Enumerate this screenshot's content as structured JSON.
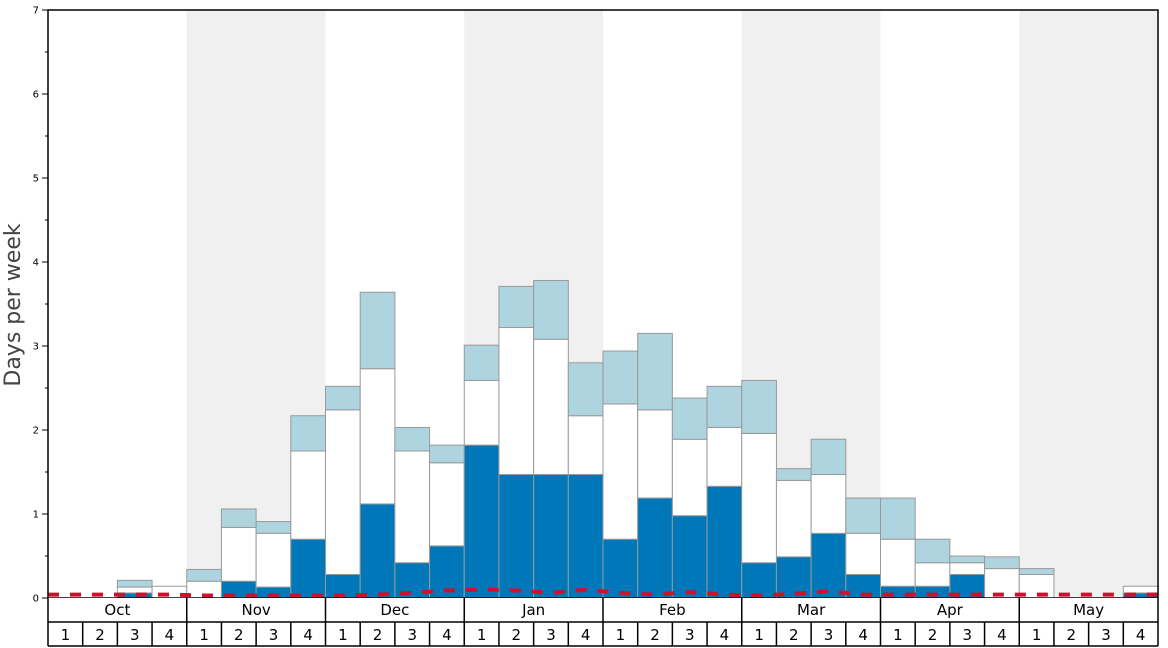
{
  "chart_data": {
    "type": "bar",
    "ylabel": "Days per week",
    "ylim": [
      0,
      7
    ],
    "yticks": [
      "0",
      "1",
      "2",
      "3",
      "4",
      "5",
      "6",
      "7"
    ],
    "months": [
      "Oct",
      "Nov",
      "Dec",
      "Jan",
      "Feb",
      "Mar",
      "Apr",
      "May"
    ],
    "weeks": [
      "1",
      "2",
      "3",
      "4"
    ],
    "colors": {
      "dark": "#0077b9",
      "white": "#ffffff",
      "light": "#aed4e0",
      "bar_stroke": "#999999",
      "shade": "#f0f0f0",
      "dashed": "#d0102a"
    },
    "series": [
      {
        "values": [
          0.0,
          0.0,
          0.06,
          0.0,
          0.0,
          0.2,
          0.13,
          0.7,
          0.28,
          1.12,
          0.42,
          0.62,
          1.82,
          1.47,
          1.47,
          1.47,
          0.7,
          1.19,
          0.98,
          1.33,
          0.42,
          0.49,
          0.77,
          0.28,
          0.14,
          0.14,
          0.28,
          0.0,
          0.0,
          0.0,
          0.0,
          0.06
        ]
      },
      {
        "values": [
          0.0,
          0.0,
          0.07,
          0.14,
          0.2,
          0.64,
          0.64,
          1.05,
          1.96,
          1.61,
          1.33,
          0.99,
          0.77,
          1.75,
          1.61,
          0.7,
          1.61,
          1.05,
          0.91,
          0.7,
          1.54,
          0.91,
          0.7,
          0.49,
          0.56,
          0.28,
          0.14,
          0.35,
          0.28,
          0.0,
          0.0,
          0.08
        ]
      },
      {
        "values": [
          0.0,
          0.0,
          0.08,
          0.0,
          0.14,
          0.22,
          0.14,
          0.42,
          0.28,
          0.91,
          0.28,
          0.21,
          0.42,
          0.49,
          0.7,
          0.63,
          0.63,
          0.91,
          0.49,
          0.49,
          0.63,
          0.14,
          0.42,
          0.42,
          0.49,
          0.28,
          0.08,
          0.14,
          0.07,
          0.0,
          0.0,
          0.0
        ]
      }
    ],
    "dashed_line": [
      0.04,
      0.04,
      0.04,
      0.04,
      0.03,
      0.03,
      0.03,
      0.03,
      0.03,
      0.04,
      0.06,
      0.09,
      0.1,
      0.09,
      0.06,
      0.1,
      0.06,
      0.04,
      0.07,
      0.04,
      0.03,
      0.05,
      0.08,
      0.04,
      0.04,
      0.04,
      0.04,
      0.04,
      0.04,
      0.04,
      0.04,
      0.04
    ]
  }
}
